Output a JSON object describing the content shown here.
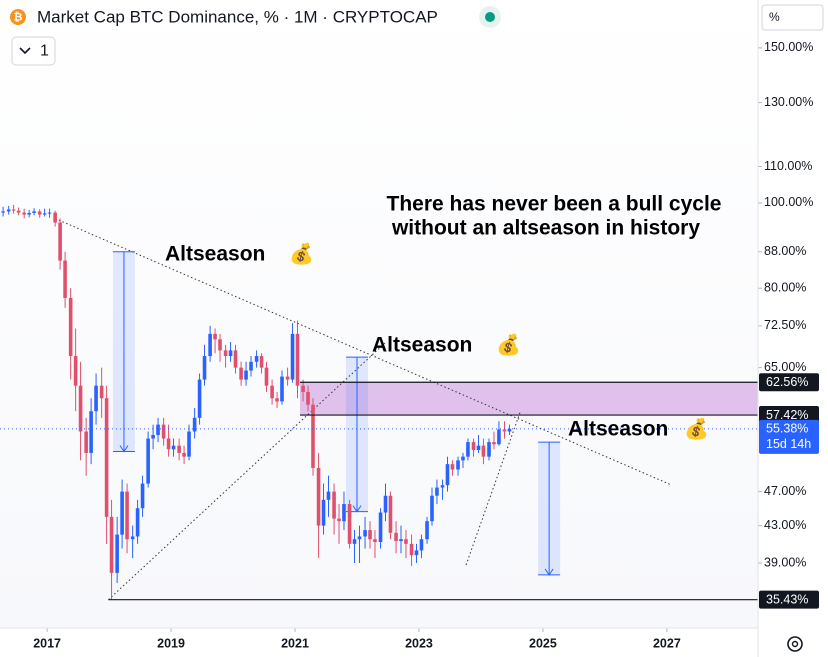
{
  "chart_data": {
    "type": "candlestick",
    "title": "Market Cap BTC Dominance, % · 1M · CRYPTOCAP",
    "interval": "1",
    "axis_unit": "%",
    "log": true,
    "up_color": "#2962ff",
    "down_color": "#e0506c",
    "xlim": [
      2016.24,
      2028.47
    ],
    "ylim": [
      32.9,
      170
    ],
    "xticks": [
      2017,
      2019,
      2021,
      2023,
      2025,
      2027
    ],
    "yticks": [
      {
        "value": 150,
        "label": "150.00%"
      },
      {
        "value": 130,
        "label": "130.00%"
      },
      {
        "value": 110,
        "label": "110.00%"
      },
      {
        "value": 100,
        "label": "100.00%"
      },
      {
        "value": 88,
        "label": "88.00%"
      },
      {
        "value": 80,
        "label": "80.00%"
      },
      {
        "value": 72.5,
        "label": "72.50%"
      },
      {
        "value": 65,
        "label": "65.00%"
      },
      {
        "value": 47,
        "label": "47.00%"
      },
      {
        "value": 43,
        "label": "43.00%"
      },
      {
        "value": 39,
        "label": "39.00%"
      }
    ],
    "x": [
      2016.29,
      2016.38,
      2016.46,
      2016.54,
      2016.63,
      2016.71,
      2016.79,
      2016.88,
      2016.96,
      2017.04,
      2017.13,
      2017.21,
      2017.29,
      2017.38,
      2017.46,
      2017.54,
      2017.63,
      2017.71,
      2017.79,
      2017.88,
      2017.96,
      2018.04,
      2018.13,
      2018.21,
      2018.29,
      2018.38,
      2018.46,
      2018.54,
      2018.63,
      2018.71,
      2018.79,
      2018.88,
      2018.96,
      2019.04,
      2019.13,
      2019.21,
      2019.29,
      2019.38,
      2019.46,
      2019.54,
      2019.63,
      2019.71,
      2019.79,
      2019.88,
      2019.96,
      2020.04,
      2020.13,
      2020.21,
      2020.29,
      2020.38,
      2020.46,
      2020.54,
      2020.63,
      2020.71,
      2020.79,
      2020.88,
      2020.96,
      2021.04,
      2021.13,
      2021.21,
      2021.29,
      2021.38,
      2021.46,
      2021.54,
      2021.63,
      2021.71,
      2021.79,
      2021.88,
      2021.96,
      2022.04,
      2022.13,
      2022.21,
      2022.29,
      2022.38,
      2022.46,
      2022.54,
      2022.63,
      2022.71,
      2022.79,
      2022.88,
      2022.96,
      2023.04,
      2023.13,
      2023.21,
      2023.29,
      2023.38,
      2023.46,
      2023.54,
      2023.63,
      2023.71,
      2023.79,
      2023.88,
      2023.96,
      2024.04,
      2024.13,
      2024.21,
      2024.29,
      2024.38,
      2024.46
    ],
    "candles": [
      [
        97.5,
        99,
        96.5,
        97.8
      ],
      [
        97.8,
        99.2,
        97,
        98.3
      ],
      [
        98.3,
        99.5,
        97.2,
        98
      ],
      [
        98,
        98.8,
        96.8,
        97.5
      ],
      [
        97.5,
        98.5,
        96,
        97
      ],
      [
        97,
        98.2,
        96.3,
        97.4
      ],
      [
        97.4,
        98.6,
        96.8,
        97.8
      ],
      [
        97.8,
        98.4,
        96.2,
        97
      ],
      [
        97,
        98.5,
        96.5,
        97.3
      ],
      [
        97.3,
        98.5,
        96.2,
        97.5
      ],
      [
        97.5,
        98,
        94,
        95
      ],
      [
        95,
        96,
        84,
        86
      ],
      [
        86,
        88,
        76,
        78
      ],
      [
        78,
        80,
        63,
        67
      ],
      [
        67,
        72,
        58,
        62
      ],
      [
        62,
        66,
        51,
        55
      ],
      [
        55,
        57,
        49,
        52
      ],
      [
        52,
        60,
        50.5,
        58
      ],
      [
        58,
        64,
        56,
        62
      ],
      [
        62,
        65,
        57,
        60
      ],
      [
        60,
        62,
        41,
        44
      ],
      [
        44,
        46,
        35.43,
        38
      ],
      [
        38,
        44,
        37,
        42
      ],
      [
        42,
        48.5,
        40.5,
        47
      ],
      [
        47,
        48,
        40,
        41.5
      ],
      [
        41.5,
        43,
        39.5,
        41.8
      ],
      [
        41.8,
        46,
        41,
        45
      ],
      [
        45,
        49,
        44,
        48
      ],
      [
        48,
        55,
        47.5,
        54
      ],
      [
        54,
        56,
        52.5,
        54.5
      ],
      [
        54.5,
        57,
        53.5,
        56
      ],
      [
        56,
        57,
        53,
        54
      ],
      [
        54,
        56,
        51.5,
        52.5
      ],
      [
        52.5,
        54,
        51.5,
        53
      ],
      [
        53,
        54,
        51,
        52
      ],
      [
        52,
        53,
        50.5,
        51.5
      ],
      [
        51.5,
        56,
        51,
        55
      ],
      [
        55,
        58.5,
        54,
        57
      ],
      [
        57,
        64,
        56,
        63
      ],
      [
        63,
        69,
        62,
        67
      ],
      [
        67,
        72.5,
        66,
        71
      ],
      [
        71,
        72,
        67.5,
        70
      ],
      [
        70,
        71,
        66,
        68
      ],
      [
        68,
        69,
        65,
        67
      ],
      [
        67,
        69.5,
        66,
        68
      ],
      [
        68,
        69,
        64,
        65
      ],
      [
        65,
        66,
        62,
        63
      ],
      [
        63,
        66,
        62,
        64.5
      ],
      [
        64.5,
        67,
        63.5,
        66
      ],
      [
        66,
        68,
        65,
        67
      ],
      [
        67,
        67.5,
        64,
        65
      ],
      [
        65,
        66,
        61,
        62
      ],
      [
        62,
        63,
        59,
        60
      ],
      [
        60,
        61,
        58.5,
        59.5
      ],
      [
        59.5,
        64.5,
        59,
        63.5
      ],
      [
        63.5,
        65,
        62,
        63
      ],
      [
        63,
        73,
        62.5,
        71
      ],
      [
        71,
        73.5,
        60,
        62
      ],
      [
        62,
        63,
        59.5,
        61
      ],
      [
        61,
        62,
        58,
        59
      ],
      [
        59,
        60,
        49,
        50
      ],
      [
        50,
        52,
        39.5,
        43
      ],
      [
        43,
        48,
        42,
        46
      ],
      [
        46,
        49,
        44,
        47
      ],
      [
        47,
        48,
        42,
        43.8
      ],
      [
        43.8,
        45.5,
        41,
        43.5
      ],
      [
        43.5,
        47,
        42.5,
        45.5
      ],
      [
        45.5,
        46,
        40.5,
        41
      ],
      [
        41,
        42.5,
        39,
        41.5
      ],
      [
        41.5,
        43,
        39,
        41.8
      ],
      [
        41.8,
        44,
        40.5,
        42.5
      ],
      [
        42.5,
        43.5,
        40.5,
        41.5
      ],
      [
        41.5,
        42.5,
        39.5,
        41.2
      ],
      [
        41.2,
        45,
        40.5,
        44.5
      ],
      [
        44.5,
        48,
        43.5,
        46.5
      ],
      [
        46.5,
        47,
        41.5,
        42.2
      ],
      [
        42.2,
        43.5,
        40,
        41.3
      ],
      [
        41.3,
        43,
        40,
        41.5
      ],
      [
        41.5,
        42.5,
        39.5,
        41
      ],
      [
        41,
        42,
        38.7,
        39.8
      ],
      [
        39.8,
        41,
        39,
        40.3
      ],
      [
        40.3,
        42,
        39.5,
        41.5
      ],
      [
        41.5,
        44,
        41,
        43.5
      ],
      [
        43.5,
        47.5,
        43,
        46.5
      ],
      [
        46.5,
        48.5,
        45.5,
        47.5
      ],
      [
        47.5,
        48.5,
        46,
        47.8
      ],
      [
        47.8,
        51.5,
        47,
        50.5
      ],
      [
        50.5,
        51,
        49,
        49.8
      ],
      [
        49.8,
        51.5,
        49,
        51
      ],
      [
        51,
        52,
        50,
        51.5
      ],
      [
        51.5,
        54,
        51,
        53.5
      ],
      [
        53.5,
        54,
        51.5,
        52.4
      ],
      [
        52.4,
        54.5,
        52,
        53
      ],
      [
        53,
        54,
        50.5,
        51.5
      ],
      [
        51.5,
        54,
        51,
        53.5
      ],
      [
        53.5,
        55,
        52.5,
        53.2
      ],
      [
        53.2,
        56.5,
        53,
        55.3
      ],
      [
        55.3,
        56.5,
        54,
        55
      ],
      [
        55,
        56,
        54.5,
        55.38
      ]
    ],
    "price_lines": [
      {
        "value": 62.56,
        "label": "62.56%",
        "x0": 2021.08
      },
      {
        "value": 57.42,
        "label": "57.42%",
        "x0": 2021.08
      },
      {
        "value": 35.43,
        "label": "35.43%",
        "x0": 2017.99
      }
    ],
    "zone_color": "#d9b6e8",
    "last": {
      "value": 55.38,
      "label": "55.38%",
      "countdown": "15d 14h"
    },
    "trendlines": [
      {
        "x": [
          2017.13,
          2027.08
        ],
        "y": [
          96,
          47.8
        ]
      },
      {
        "x": [
          2017.99,
          2022.45
        ],
        "y": [
          35.43,
          69.3
        ]
      },
      {
        "x": [
          2023.76,
          2024.63
        ],
        "y": [
          38.8,
          57.8
        ]
      }
    ],
    "arrows": [
      {
        "x": 2018.24,
        "from": 88,
        "to": 52.2
      },
      {
        "x": 2022.0,
        "from": 66.8,
        "to": 44.6
      },
      {
        "x": 2025.1,
        "from": 53.5,
        "to": 37.8
      }
    ],
    "annotations": [
      {
        "text": "Altseason",
        "icon": "💰"
      },
      {
        "text": "Altseason",
        "icon": "💰"
      },
      {
        "text": "Altseason",
        "icon": "💰"
      }
    ],
    "note": [
      "There has never been a bull cycle",
      "without an altseason in history"
    ]
  }
}
